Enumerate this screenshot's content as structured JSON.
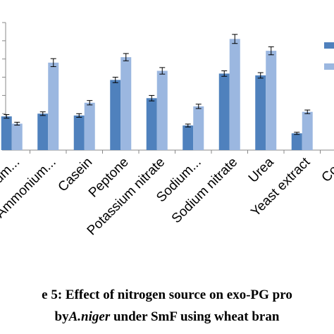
{
  "chart_data": {
    "type": "bar",
    "categories": [
      "Ammonium...",
      "Ammonium...",
      "Casein",
      "Peptone",
      "Potassium nitrate",
      "Sodium...",
      "Sodium nitrate",
      "Urea",
      "Yeast extract",
      "Cont"
    ],
    "series": [
      {
        "color": "#4F81BD",
        "values": [
          1.85,
          2.0,
          1.9,
          3.85,
          2.85,
          1.35,
          4.2,
          4.1,
          0.92,
          null
        ],
        "errors": [
          0.1,
          0.1,
          0.1,
          0.15,
          0.15,
          0.08,
          0.15,
          0.15,
          0.06,
          null
        ]
      },
      {
        "color": "#9BB7E0",
        "values": [
          1.45,
          4.8,
          2.6,
          5.1,
          4.35,
          2.4,
          6.1,
          5.45,
          2.1,
          null
        ],
        "errors": [
          0.08,
          0.22,
          0.12,
          0.2,
          0.18,
          0.12,
          0.25,
          0.22,
          0.1,
          null
        ]
      }
    ],
    "ylim": [
      0,
      7
    ],
    "yticks": [
      0,
      1,
      2,
      3,
      4,
      5,
      6,
      7
    ],
    "grid": false,
    "legend": "right"
  },
  "caption": {
    "line1": "e 5: Effect of nitrogen source on exo-PG pro",
    "line2_prefix": "by",
    "line2_italic": "A.niger",
    "line2_suffix": " under SmF using wheat bran"
  }
}
